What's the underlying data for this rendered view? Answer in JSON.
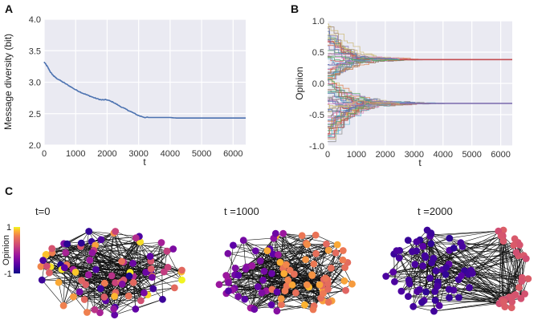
{
  "panel_letters": {
    "a": "A",
    "b": "B",
    "c": "C"
  },
  "chart_data": [
    {
      "id": "A",
      "type": "line",
      "xlabel": "t",
      "ylabel": "Message diversity (bit)",
      "xlim": [
        0,
        6400
      ],
      "ylim": [
        2.0,
        4.0
      ],
      "xticks": [
        "0",
        "1000",
        "2000",
        "3000",
        "4000",
        "5000",
        "6000"
      ],
      "yticks": [
        "2.0",
        "2.5",
        "3.0",
        "3.5",
        "4.0"
      ],
      "grid": true,
      "series": [
        {
          "name": "message diversity",
          "color": "#4c72b0",
          "x": [
            0,
            100,
            200,
            300,
            400,
            600,
            800,
            1000,
            1200,
            1400,
            1600,
            1800,
            2000,
            2200,
            2400,
            2600,
            2800,
            3000,
            3200,
            3500,
            3800,
            4000,
            4200,
            5000,
            6400
          ],
          "y": [
            3.32,
            3.25,
            3.16,
            3.1,
            3.06,
            3.0,
            2.94,
            2.88,
            2.83,
            2.79,
            2.75,
            2.72,
            2.72,
            2.68,
            2.62,
            2.57,
            2.52,
            2.47,
            2.44,
            2.44,
            2.44,
            2.44,
            2.43,
            2.43,
            2.43
          ]
        }
      ]
    },
    {
      "id": "B",
      "type": "line",
      "xlabel": "t",
      "ylabel": "Opinion",
      "xlim": [
        0,
        6400
      ],
      "ylim": [
        -1.0,
        1.0
      ],
      "xticks": [
        "0",
        "1000",
        "2000",
        "3000",
        "4000",
        "5000",
        "6000"
      ],
      "yticks": [
        "-1.0",
        "-0.5",
        "0.0",
        "0.5",
        "1.0"
      ],
      "grid": true,
      "clusters": [
        {
          "name": "upper cluster",
          "consensus": 0.38,
          "converge_t": 3500
        },
        {
          "name": "lower cluster",
          "consensus": -0.32,
          "converge_t": 4200
        }
      ],
      "consensus_lines": [
        {
          "value": 0.38,
          "color": "#c44e52"
        },
        {
          "value": -0.32,
          "color": "#8172b2"
        }
      ]
    }
  ],
  "panel_c": {
    "colorbar": {
      "label": "Opinion",
      "max_label": "1",
      "min_label": "-1"
    },
    "networks": [
      {
        "label": "t=0"
      },
      {
        "label": "t =1000"
      },
      {
        "label": "t =2000"
      }
    ]
  },
  "colors": {
    "plot_bg": "#eaeaf2",
    "grid": "#ffffff",
    "edge": "#111111"
  }
}
